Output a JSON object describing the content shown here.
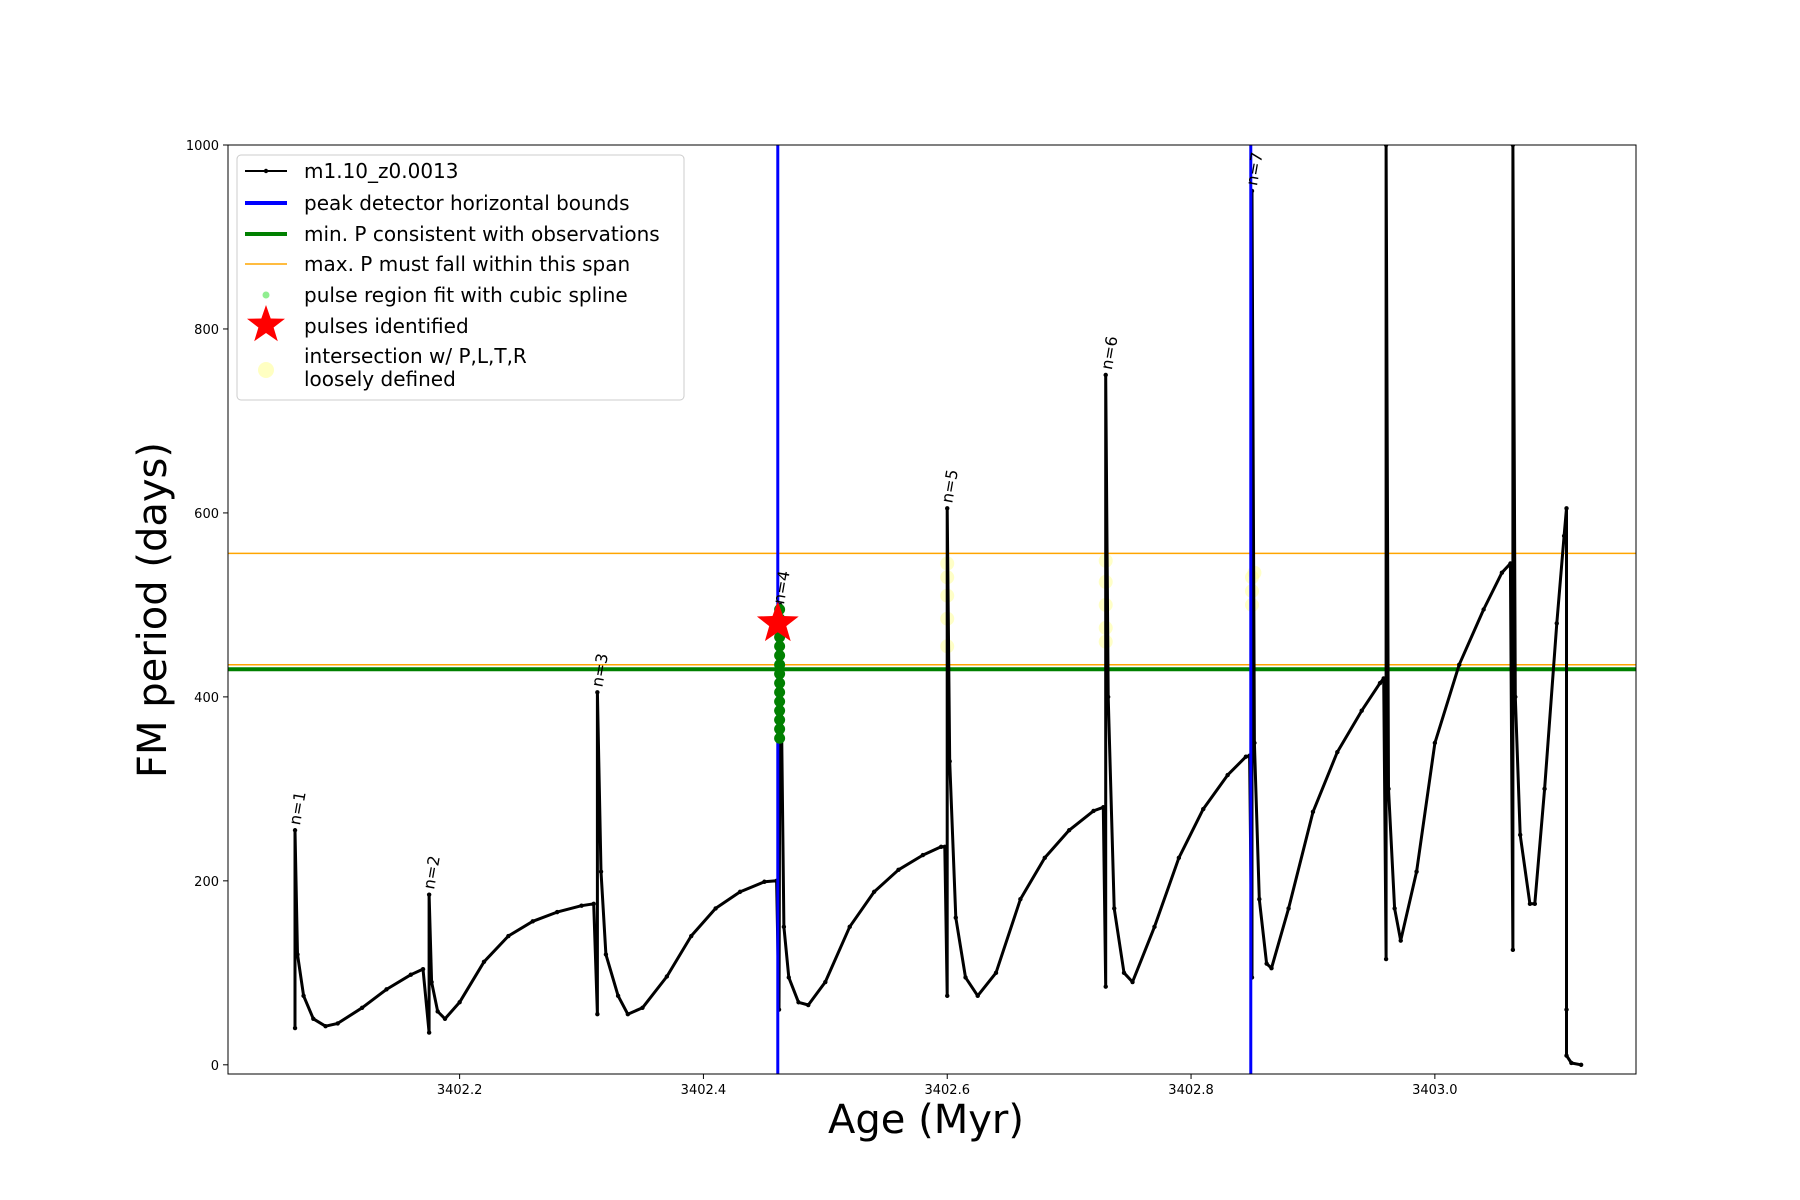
{
  "chart_data": {
    "type": "line",
    "title": "",
    "xlabel": "Age (Myr)",
    "ylabel": "FM period (days)",
    "xlim": [
      3402.01,
      3403.165
    ],
    "ylim": [
      -10,
      1000
    ],
    "xticks": [
      3402.2,
      3402.4,
      3402.6,
      3402.8,
      3403.0
    ],
    "xtick_labels": [
      "3402.2",
      "3402.4",
      "3402.6",
      "3402.8",
      "3403.0"
    ],
    "yticks": [
      0,
      200,
      400,
      600,
      800,
      1000
    ],
    "ytick_labels": [
      "0",
      "200",
      "400",
      "600",
      "800",
      "1000"
    ],
    "grid": false,
    "legend_position": "upper-left",
    "legend": [
      {
        "key": "line",
        "label": "m1.10_z0.0013",
        "color": "#000000"
      },
      {
        "key": "bounds",
        "label": "peak detector horizontal bounds",
        "color": "#0000ff"
      },
      {
        "key": "minp",
        "label": "min. P consistent with observations",
        "color": "#008000"
      },
      {
        "key": "maxp",
        "label": "max. P must fall within this span",
        "color": "#ffa500"
      },
      {
        "key": "spline",
        "label": "pulse region fit with cubic spline",
        "color": "#90ee90"
      },
      {
        "key": "pulses",
        "label": "pulses identified",
        "color": "#ff0000"
      },
      {
        "key": "intersect",
        "label": "intersection w/ P,L,T,R\nloosely defined",
        "color": "#ffff99"
      }
    ],
    "series": [
      {
        "name": "m1.10_z0.0013",
        "color": "#000000",
        "points": [
          [
            3402.065,
            40
          ],
          [
            3402.065,
            255
          ],
          [
            3402.067,
            120
          ],
          [
            3402.072,
            75
          ],
          [
            3402.08,
            50
          ],
          [
            3402.09,
            42
          ],
          [
            3402.1,
            45
          ],
          [
            3402.12,
            62
          ],
          [
            3402.14,
            82
          ],
          [
            3402.16,
            98
          ],
          [
            3402.17,
            104
          ],
          [
            3402.175,
            35
          ],
          [
            3402.175,
            185
          ],
          [
            3402.177,
            90
          ],
          [
            3402.182,
            58
          ],
          [
            3402.188,
            50
          ],
          [
            3402.2,
            68
          ],
          [
            3402.22,
            112
          ],
          [
            3402.24,
            140
          ],
          [
            3402.26,
            156
          ],
          [
            3402.28,
            166
          ],
          [
            3402.3,
            173
          ],
          [
            3402.31,
            175
          ],
          [
            3402.313,
            55
          ],
          [
            3402.313,
            405
          ],
          [
            3402.316,
            210
          ],
          [
            3402.32,
            120
          ],
          [
            3402.33,
            75
          ],
          [
            3402.338,
            55
          ],
          [
            3402.35,
            62
          ],
          [
            3402.37,
            96
          ],
          [
            3402.39,
            140
          ],
          [
            3402.41,
            170
          ],
          [
            3402.43,
            188
          ],
          [
            3402.45,
            199
          ],
          [
            3402.46,
            200
          ],
          [
            3402.462,
            60
          ],
          [
            3402.463,
            500
          ],
          [
            3402.466,
            150
          ],
          [
            3402.47,
            95
          ],
          [
            3402.478,
            68
          ],
          [
            3402.486,
            65
          ],
          [
            3402.5,
            90
          ],
          [
            3402.52,
            150
          ],
          [
            3402.54,
            188
          ],
          [
            3402.56,
            212
          ],
          [
            3402.58,
            228
          ],
          [
            3402.595,
            237
          ],
          [
            3402.598,
            237
          ],
          [
            3402.6,
            75
          ],
          [
            3402.6,
            605
          ],
          [
            3402.602,
            330
          ],
          [
            3402.607,
            160
          ],
          [
            3402.615,
            95
          ],
          [
            3402.625,
            75
          ],
          [
            3402.64,
            100
          ],
          [
            3402.66,
            180
          ],
          [
            3402.68,
            225
          ],
          [
            3402.7,
            255
          ],
          [
            3402.72,
            276
          ],
          [
            3402.728,
            280
          ],
          [
            3402.73,
            85
          ],
          [
            3402.73,
            750
          ],
          [
            3402.732,
            400
          ],
          [
            3402.737,
            170
          ],
          [
            3402.745,
            100
          ],
          [
            3402.752,
            90
          ],
          [
            3402.77,
            150
          ],
          [
            3402.79,
            225
          ],
          [
            3402.81,
            278
          ],
          [
            3402.83,
            315
          ],
          [
            3402.845,
            335
          ],
          [
            3402.848,
            336
          ],
          [
            3402.85,
            95
          ],
          [
            3402.85,
            950
          ],
          [
            3402.852,
            350
          ],
          [
            3402.856,
            180
          ],
          [
            3402.862,
            110
          ],
          [
            3402.866,
            105
          ],
          [
            3402.88,
            170
          ],
          [
            3402.9,
            275
          ],
          [
            3402.92,
            340
          ],
          [
            3402.94,
            385
          ],
          [
            3402.955,
            415
          ],
          [
            3402.958,
            420
          ],
          [
            3402.96,
            115
          ],
          [
            3402.96,
            1000
          ],
          [
            3402.962,
            300
          ],
          [
            3402.967,
            170
          ],
          [
            3402.972,
            135
          ],
          [
            3402.985,
            210
          ],
          [
            3403.0,
            350
          ],
          [
            3403.02,
            435
          ],
          [
            3403.04,
            495
          ],
          [
            3403.055,
            535
          ],
          [
            3403.062,
            545
          ],
          [
            3403.064,
            125
          ],
          [
            3403.064,
            1000
          ],
          [
            3403.066,
            400
          ],
          [
            3403.07,
            250
          ],
          [
            3403.078,
            175
          ],
          [
            3403.082,
            175
          ],
          [
            3403.09,
            300
          ],
          [
            3403.1,
            480
          ],
          [
            3403.106,
            575
          ],
          [
            3403.108,
            605
          ],
          [
            3403.108,
            60
          ],
          [
            3403.108,
            10
          ],
          [
            3403.112,
            2
          ],
          [
            3403.12,
            0
          ]
        ]
      }
    ],
    "blue_vlines_x": [
      3402.461,
      3402.849
    ],
    "orange_hlines_y": [
      435,
      556
    ],
    "green_hline_y": 430,
    "spline_points": {
      "x": 3402.4625,
      "y": [
        355,
        365,
        375,
        385,
        395,
        405,
        415,
        425,
        435,
        445,
        455,
        465,
        475,
        485,
        495
      ]
    },
    "pulses_identified": [
      [
        3402.461,
        480
      ]
    ],
    "intersections": [
      [
        3402.6,
        455
      ],
      [
        3402.6,
        485
      ],
      [
        3402.6,
        510
      ],
      [
        3402.6,
        530
      ],
      [
        3402.6,
        545
      ],
      [
        3402.73,
        460
      ],
      [
        3402.73,
        475
      ],
      [
        3402.73,
        500
      ],
      [
        3402.73,
        525
      ],
      [
        3402.73,
        548
      ],
      [
        3402.85,
        500
      ],
      [
        3402.85,
        515
      ],
      [
        3402.85,
        530
      ],
      [
        3402.852,
        535
      ]
    ],
    "annotations": [
      {
        "text": "n=1",
        "x": 3402.069,
        "y": 260
      },
      {
        "text": "n=2",
        "x": 3402.179,
        "y": 190
      },
      {
        "text": "n=3",
        "x": 3402.317,
        "y": 410
      },
      {
        "text": "n=4",
        "x": 3402.466,
        "y": 500
      },
      {
        "text": "n=5",
        "x": 3402.604,
        "y": 610
      },
      {
        "text": "n=6",
        "x": 3402.735,
        "y": 755
      },
      {
        "text": "n=7",
        "x": 3402.854,
        "y": 955
      }
    ]
  }
}
